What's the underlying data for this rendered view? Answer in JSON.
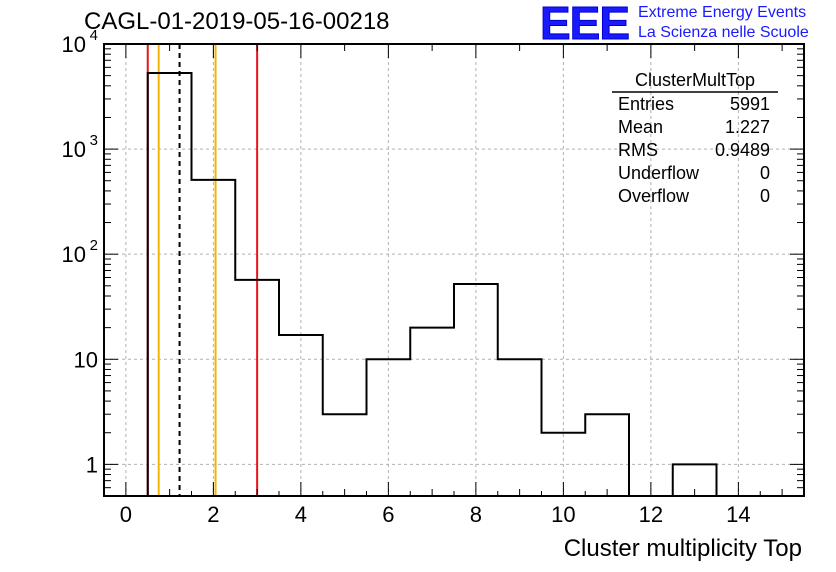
{
  "header": {
    "run_title": "CAGL-01-2019-05-16-00218",
    "logo_letters": "EEE",
    "logo_line1": "Extreme Energy Events",
    "logo_line2": "La Scienza nelle Scuole"
  },
  "stats_box": {
    "title": "ClusterMultTop",
    "rows": [
      {
        "label": "Entries",
        "value": "5991"
      },
      {
        "label": "Mean",
        "value": "1.227"
      },
      {
        "label": "RMS",
        "value": "0.9489"
      },
      {
        "label": "Underflow",
        "value": "0"
      },
      {
        "label": "Overflow",
        "value": "0"
      }
    ]
  },
  "colors": {
    "histogram": "#000000",
    "red_line": "#e8141c",
    "orange_line": "#f5b400",
    "grid": "#b0b0b0",
    "logo": "#1a1aff"
  },
  "chart_data": {
    "type": "bar",
    "title": "CAGL-01-2019-05-16-00218",
    "xlabel": "Cluster multiplicity Top",
    "ylabel": "",
    "y_scale": "log",
    "xlim": [
      -0.5,
      15.5
    ],
    "ylim": [
      0.5,
      10000
    ],
    "grid": true,
    "bins": [
      {
        "x": 1,
        "value": 5300
      },
      {
        "x": 2,
        "value": 510
      },
      {
        "x": 3,
        "value": 57
      },
      {
        "x": 4,
        "value": 17
      },
      {
        "x": 5,
        "value": 3
      },
      {
        "x": 6,
        "value": 10
      },
      {
        "x": 7,
        "value": 20
      },
      {
        "x": 8,
        "value": 52
      },
      {
        "x": 9,
        "value": 10
      },
      {
        "x": 10,
        "value": 2
      },
      {
        "x": 11,
        "value": 3
      },
      {
        "x": 13,
        "value": 1
      }
    ],
    "bin_width": 1,
    "x_ticks": [
      0,
      2,
      4,
      6,
      8,
      10,
      12,
      14
    ],
    "y_ticks": [
      {
        "value": 1,
        "label": "1"
      },
      {
        "value": 10,
        "label": "10"
      },
      {
        "value": 100,
        "label": "10",
        "exp": "2"
      },
      {
        "value": 1000,
        "label": "10",
        "exp": "3"
      },
      {
        "value": 10000,
        "label": "10",
        "exp": "4"
      }
    ],
    "vertical_lines": [
      {
        "x": 0.5,
        "color": "#e8141c",
        "style": "solid"
      },
      {
        "x": 0.75,
        "color": "#f5b400",
        "style": "solid"
      },
      {
        "x": 1.227,
        "color": "#000000",
        "style": "dashed"
      },
      {
        "x": 2.05,
        "color": "#f5b400",
        "style": "solid"
      },
      {
        "x": 3.0,
        "color": "#e8141c",
        "style": "solid"
      }
    ]
  }
}
